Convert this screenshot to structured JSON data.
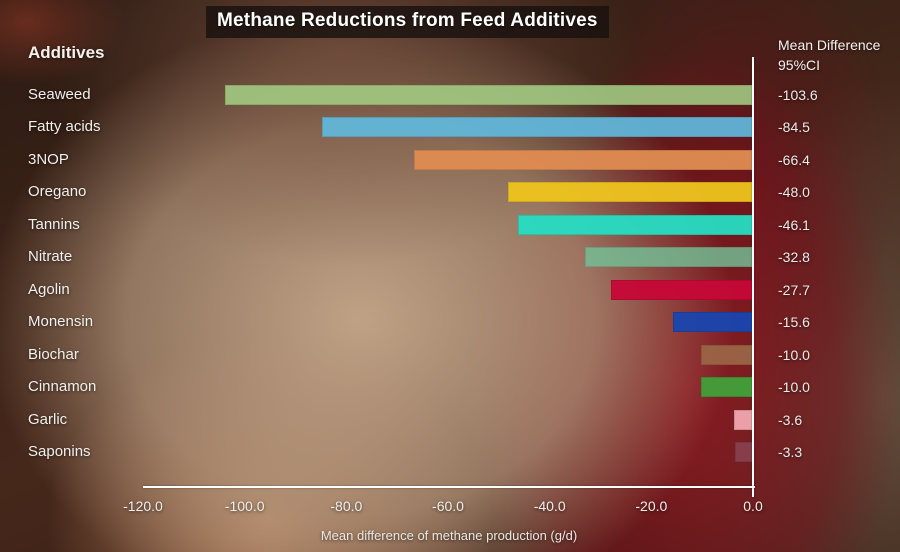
{
  "title": "Methane Reductions from Feed Additives",
  "left_header": "Additives",
  "right_header": {
    "line1": "Mean Difference",
    "line2": "95%CI"
  },
  "chart_data": {
    "type": "bar",
    "orientation": "horizontal",
    "title": "Methane Reductions from Feed Additives",
    "xlabel": "Mean difference of methane production (g/d)",
    "ylabel": "Additives",
    "xlim": [
      -120,
      0
    ],
    "grid": false,
    "legend": "none",
    "categories": [
      "Seaweed",
      "Fatty acids",
      "3NOP",
      "Oregano",
      "Tannins",
      "Nitrate",
      "Agolin",
      "Monensin",
      "Biochar",
      "Cinnamon",
      "Garlic",
      "Saponins"
    ],
    "values": [
      -103.6,
      -84.5,
      -66.4,
      -48.0,
      -46.1,
      -32.8,
      -27.7,
      -15.6,
      -10.0,
      -10.0,
      -3.6,
      -3.3
    ],
    "value_labels": [
      "-103.6",
      "-84.5",
      "-66.4",
      "-48.0",
      "-46.1",
      "-32.8",
      "-27.7",
      "-15.6",
      "-10.0",
      "-10.0",
      "-3.6",
      "-3.3"
    ],
    "bar_colors": [
      "#a4cd84",
      "#61b9de",
      "#e08c52",
      "#efc41e",
      "#27ddc3",
      "#74c096",
      "#c70837",
      "#1a46b0",
      "#9c6848",
      "#42a03a",
      "#f2a6b0",
      "#8a4150"
    ],
    "bar_opacity": [
      0.88,
      0.92,
      0.95,
      0.95,
      0.95,
      0.82,
      0.95,
      0.95,
      0.9,
      0.95,
      0.95,
      0.9
    ],
    "x_tick_values": [
      -120,
      -100,
      -80,
      -60,
      -40,
      -20,
      0
    ],
    "x_tick_labels": [
      "-120.0",
      "-100.0",
      "-80.0",
      "-60.0",
      "-40.0",
      "-20.0",
      "0.0"
    ],
    "axis_color": "#ffffff"
  }
}
